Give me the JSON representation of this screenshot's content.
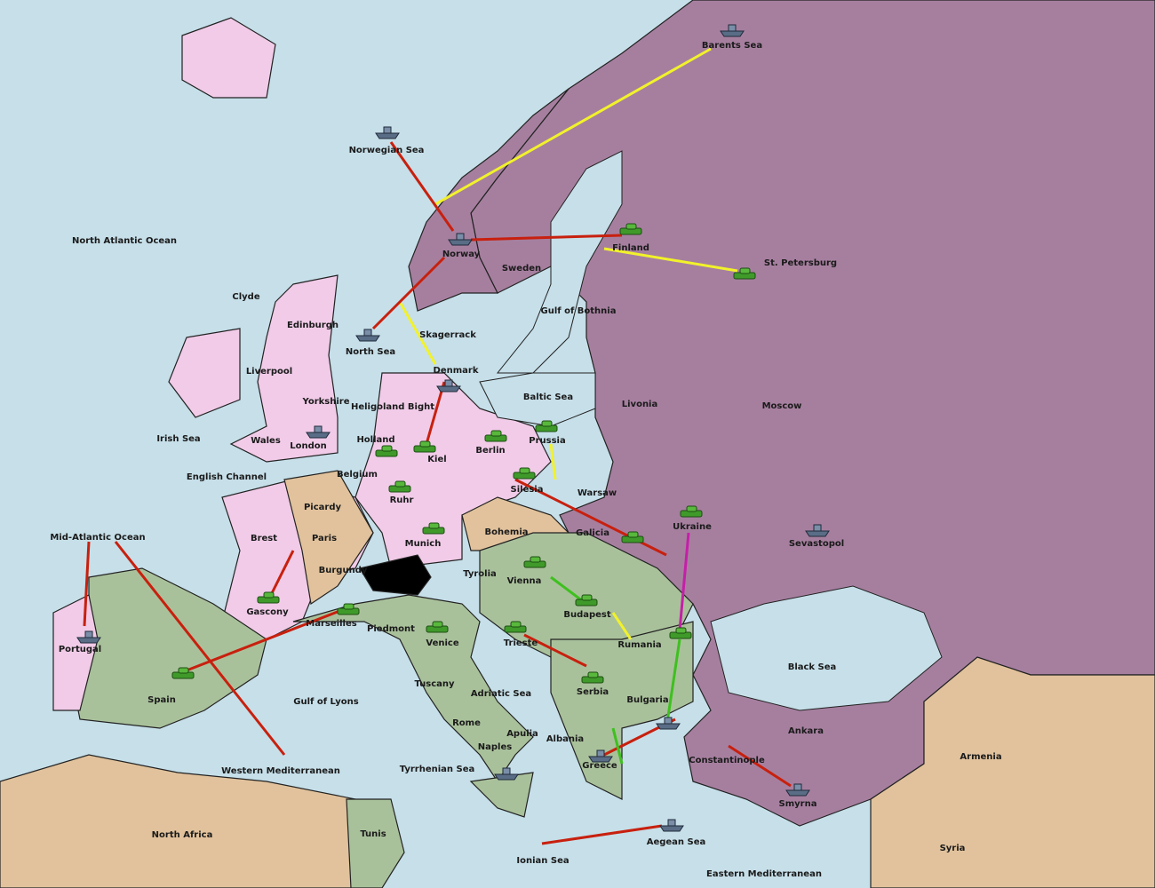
{
  "map": {
    "provinces": [
      "Barents Sea",
      "Norwegian Sea",
      "North Atlantic Ocean",
      "Norway",
      "Finland",
      "St. Petersburg",
      "Sweden",
      "Clyde",
      "Gulf of Bothnia",
      "Edinburgh",
      "Skagerrack",
      "North Sea",
      "Liverpool",
      "Denmark",
      "Baltic Sea",
      "Yorkshire",
      "Heligoland Bight",
      "Livonia",
      "Moscow",
      "Irish Sea",
      "Wales",
      "Holland",
      "Prussia",
      "London",
      "Berlin",
      "Kiel",
      "English Channel",
      "Belgium",
      "Silesia",
      "Warsaw",
      "Picardy",
      "Ruhr",
      "Ukraine",
      "Mid-Atlantic Ocean",
      "Bohemia",
      "Galicia",
      "Brest",
      "Paris",
      "Munich",
      "Sevastopol",
      "Burgundy",
      "Tyrolia",
      "Vienna",
      "Gascony",
      "Budapest",
      "Marseilles",
      "Piedmont",
      "Venice",
      "Trieste",
      "Rumania",
      "Portugal",
      "Black Sea",
      "Tuscany",
      "Serbia",
      "Adriatic Sea",
      "Spain",
      "Gulf of Lyons",
      "Bulgaria",
      "Rome",
      "Apulia",
      "Ankara",
      "Albania",
      "Naples",
      "Constantinople",
      "Armenia",
      "Greece",
      "Western Mediterranean",
      "Tyrrhenian Sea",
      "Smyrna",
      "North Africa",
      "Tunis",
      "Aegean Sea",
      "Syria",
      "Ionian Sea",
      "Eastern Mediterranean"
    ]
  }
}
